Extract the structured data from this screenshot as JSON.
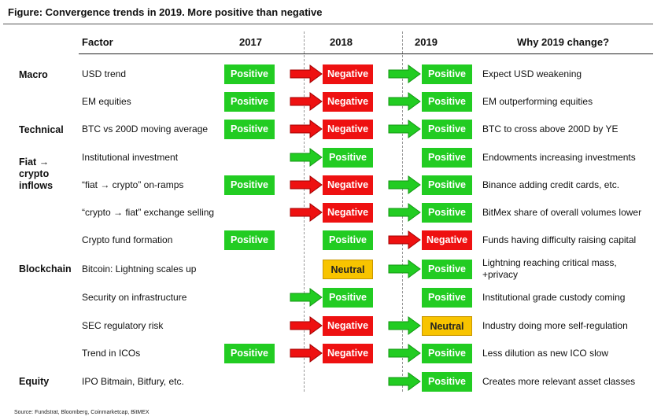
{
  "title": "Figure: Convergence trends in 2019.  More positive than negative",
  "source": "Source: Fundstrat, Bloomberg, Coinmarketcap, BitMEX",
  "headers": {
    "factor": "Factor",
    "y2017": "2017",
    "y2018": "2018",
    "y2019": "2019",
    "why": "Why 2019 change?"
  },
  "groups": [
    "Macro",
    "Technical",
    "Fiat → crypto inflows",
    "Blockchain",
    "Equity"
  ],
  "colors": {
    "positive": "#22cc22",
    "negative": "#ee1111",
    "neutral": "#f8c400"
  },
  "rows": [
    {
      "factor": "USD trend",
      "y2017": "Positive",
      "arrow18": "red",
      "y2018": "Negative",
      "arrow19": "green",
      "y2019": "Positive",
      "why": "Expect USD weakening"
    },
    {
      "factor": "EM equities",
      "y2017": "Positive",
      "arrow18": "red",
      "y2018": "Negative",
      "arrow19": "green",
      "y2019": "Positive",
      "why": "EM outperforming equities"
    },
    {
      "factor": "BTC vs 200D moving average",
      "y2017": "Positive",
      "arrow18": "red",
      "y2018": "Negative",
      "arrow19": "green",
      "y2019": "Positive",
      "why": "BTC to cross above 200D by YE"
    },
    {
      "factor": "Institutional investment",
      "y2017": "",
      "arrow18": "green",
      "y2018": "Positive",
      "arrow19": "",
      "y2019": "Positive",
      "why": "Endowments increasing investments"
    },
    {
      "factor": "“fiat → crypto” on-ramps",
      "y2017": "Positive",
      "arrow18": "red",
      "y2018": "Negative",
      "arrow19": "green",
      "y2019": "Positive",
      "why": "Binance adding credit cards, etc."
    },
    {
      "factor": "“crypto → fiat” exchange selling",
      "y2017": "",
      "arrow18": "red",
      "y2018": "Negative",
      "arrow19": "green",
      "y2019": "Positive",
      "why": "BitMex share of overall volumes lower"
    },
    {
      "factor": "Crypto fund formation",
      "y2017": "Positive",
      "arrow18": "",
      "y2018": "Positive",
      "arrow19": "red",
      "y2019": "Negative",
      "why": "Funds having difficulty raising capital"
    },
    {
      "factor": "Bitcoin: Lightning scales up",
      "y2017": "",
      "arrow18": "",
      "y2018": "Neutral",
      "arrow19": "green",
      "y2019": "Positive",
      "why": "Lightning reaching critical mass,",
      "why2": "+privacy"
    },
    {
      "factor": "Security on infrastructure",
      "y2017": "",
      "arrow18": "green",
      "y2018": "Positive",
      "arrow19": "",
      "y2019": "Positive",
      "why": "Institutional grade custody coming"
    },
    {
      "factor": "SEC regulatory risk",
      "y2017": "",
      "arrow18": "red",
      "y2018": "Negative",
      "arrow19": "green",
      "y2019": "Neutral",
      "why": "Industry doing more self-regulation"
    },
    {
      "factor": "Trend in ICOs",
      "y2017": "Positive",
      "arrow18": "red",
      "y2018": "Negative",
      "arrow19": "green",
      "y2019": "Positive",
      "why": "Less dilution as new ICO slow"
    },
    {
      "factor": "IPO Bitmain, Bitfury, etc.",
      "y2017": "",
      "arrow18": "",
      "y2018": "",
      "arrow19": "green",
      "y2019": "Positive",
      "why": "Creates more relevant asset classes"
    }
  ]
}
